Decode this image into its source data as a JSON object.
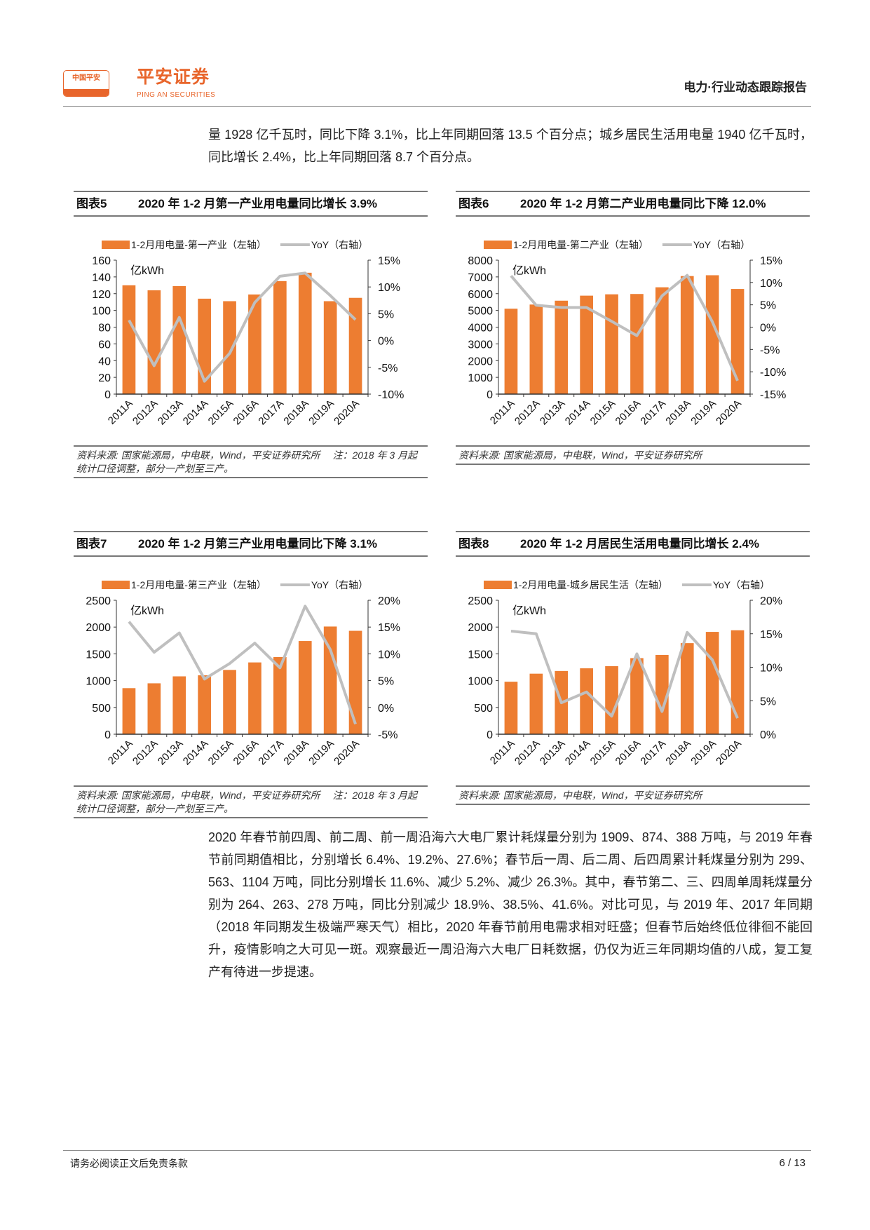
{
  "header": {
    "logo_cn": "中国平安",
    "brand": "平安证券",
    "brand_en": "PING AN SECURITIES",
    "report_type": "电力·行业动态跟踪报告"
  },
  "intro_paragraph": "量 1928 亿千瓦时，同比下降 3.1%，比上年同期回落 13.5 个百分点；城乡居民生活用电量 1940 亿千瓦时，同比增长 2.4%，比上年同期回落 8.7 个百分点。",
  "colors": {
    "bar": "#ED7D31",
    "line": "#BFBFBF"
  },
  "chart_data": [
    {
      "type": "bar",
      "figure_no": "图表5",
      "title": "2020 年 1-2 月第一产业用电量同比增长 3.9%",
      "bar_legend": "1-2月用电量-第一产业（左轴）",
      "line_legend": "YoY（右轴）",
      "unit": "亿kWh",
      "categories": [
        "2011A",
        "2012A",
        "2013A",
        "2014A",
        "2015A",
        "2016A",
        "2017A",
        "2018A",
        "2019A",
        "2020A"
      ],
      "series": [
        {
          "name": "1-2月用电量-第一产业",
          "axis": "left",
          "values": [
            130,
            124,
            129,
            114,
            111,
            119,
            135,
            145,
            111,
            115
          ]
        },
        {
          "name": "YoY",
          "axis": "right",
          "values": [
            3.8,
            -4.7,
            4.3,
            -7.6,
            -2.4,
            7.1,
            12.0,
            12.6,
            8.4,
            3.9
          ]
        }
      ],
      "ylim_left": [
        0,
        160
      ],
      "yticks_left": [
        "0",
        "20",
        "40",
        "60",
        "80",
        "100",
        "120",
        "140",
        "160"
      ],
      "ylim_right": [
        -10,
        15
      ],
      "yticks_right": [
        "-10%",
        "-5%",
        "0%",
        "5%",
        "10%",
        "15%"
      ],
      "source": "资料来源: 国家能源局，中电联，Wind，平安证券研究所　 注：2018 年 3 月起统计口径调整，部分一产划至三产。"
    },
    {
      "type": "bar",
      "figure_no": "图表6",
      "title": "2020 年 1-2 月第二产业用电量同比下降 12.0%",
      "bar_legend": "1-2月用电量-第二产业（左轴）",
      "line_legend": "YoY（右轴）",
      "unit": "亿kWh",
      "categories": [
        "2011A",
        "2012A",
        "2013A",
        "2014A",
        "2015A",
        "2016A",
        "2017A",
        "2018A",
        "2019A",
        "2020A"
      ],
      "series": [
        {
          "name": "1-2月用电量-第二产业",
          "axis": "left",
          "values": [
            5100,
            5350,
            5580,
            5880,
            5960,
            5980,
            6380,
            7050,
            7100,
            6280
          ]
        },
        {
          "name": "YoY",
          "axis": "right",
          "values": [
            11.5,
            4.9,
            4.4,
            4.4,
            1.3,
            -1.9,
            7.0,
            11.6,
            1.2,
            -12.0
          ]
        }
      ],
      "ylim_left": [
        0,
        8000
      ],
      "yticks_left": [
        "0",
        "1000",
        "2000",
        "3000",
        "4000",
        "5000",
        "6000",
        "7000",
        "8000"
      ],
      "ylim_right": [
        -15,
        15
      ],
      "yticks_right": [
        "-15%",
        "-10%",
        "-5%",
        "0%",
        "5%",
        "10%",
        "15%"
      ],
      "source": "资料来源: 国家能源局，中电联，Wind，平安证券研究所"
    },
    {
      "type": "bar",
      "figure_no": "图表7",
      "title": "2020 年 1-2 月第三产业用电量同比下降 3.1%",
      "bar_legend": "1-2月用电量-第三产业（左轴）",
      "line_legend": "YoY（右轴）",
      "unit": "亿kWh",
      "categories": [
        "2011A",
        "2012A",
        "2013A",
        "2014A",
        "2015A",
        "2016A",
        "2017A",
        "2018A",
        "2019A",
        "2020A"
      ],
      "series": [
        {
          "name": "1-2月用电量-第三产业",
          "axis": "left",
          "values": [
            860,
            950,
            1080,
            1100,
            1200,
            1340,
            1440,
            1740,
            2010,
            1930
          ]
        },
        {
          "name": "YoY",
          "axis": "right",
          "values": [
            16.0,
            10.3,
            13.9,
            5.3,
            8.2,
            12.0,
            7.4,
            18.9,
            10.8,
            -3.1
          ]
        }
      ],
      "ylim_left": [
        0,
        2500
      ],
      "yticks_left": [
        "0",
        "500",
        "1000",
        "1500",
        "2000",
        "2500"
      ],
      "ylim_right": [
        -5,
        20
      ],
      "yticks_right": [
        "-5%",
        "0%",
        "5%",
        "10%",
        "15%",
        "20%"
      ],
      "source": "资料来源: 国家能源局，中电联，Wind，平安证券研究所　 注：2018 年 3 月起统计口径调整，部分一产划至三产。"
    },
    {
      "type": "bar",
      "figure_no": "图表8",
      "title": "2020 年 1-2 月居民生活用电量同比增长 2.4%",
      "bar_legend": "1-2月用电量-城乡居民生活（左轴）",
      "line_legend": "YoY（右轴）",
      "unit": "亿kWh",
      "categories": [
        "2011A",
        "2012A",
        "2013A",
        "2014A",
        "2015A",
        "2016A",
        "2017A",
        "2018A",
        "2019A",
        "2020A"
      ],
      "series": [
        {
          "name": "1-2月用电量-城乡居民生活",
          "axis": "left",
          "values": [
            980,
            1130,
            1180,
            1230,
            1270,
            1420,
            1480,
            1700,
            1910,
            1940
          ]
        },
        {
          "name": "YoY",
          "axis": "right",
          "values": [
            15.4,
            15.0,
            4.7,
            6.3,
            2.7,
            12.0,
            3.4,
            15.2,
            11.1,
            2.4
          ]
        }
      ],
      "ylim_left": [
        0,
        2500
      ],
      "yticks_left": [
        "0",
        "500",
        "1000",
        "1500",
        "2000",
        "2500"
      ],
      "ylim_right": [
        0,
        20
      ],
      "yticks_right": [
        "0%",
        "5%",
        "10%",
        "15%",
        "20%"
      ],
      "source": "资料来源: 国家能源局，中电联，Wind，平安证券研究所"
    }
  ],
  "body_paragraph": "2020 年春节前四周、前二周、前一周沿海六大电厂累计耗煤量分别为 1909、874、388 万吨，与 2019 年春节前同期值相比，分别增长 6.4%、19.2%、27.6%；春节后一周、后二周、后四周累计耗煤量分别为 299、563、1104 万吨，同比分别增长 11.6%、减少 5.2%、减少 26.3%。其中，春节第二、三、四周单周耗煤量分别为 264、263、278 万吨，同比分别减少 18.9%、38.5%、41.6%。对比可见，与 2019 年、2017 年同期（2018 年同期发生极端严寒天气）相比，2020 年春节前用电需求相对旺盛；但春节后始终低位徘徊不能回升，疫情影响之大可见一斑。观察最近一周沿海六大电厂日耗数据，仍仅为近三年同期均值的八成，复工复产有待进一步提速。",
  "footer": {
    "disclaimer": "请务必阅读正文后免责条款",
    "page": "6 / 13"
  }
}
